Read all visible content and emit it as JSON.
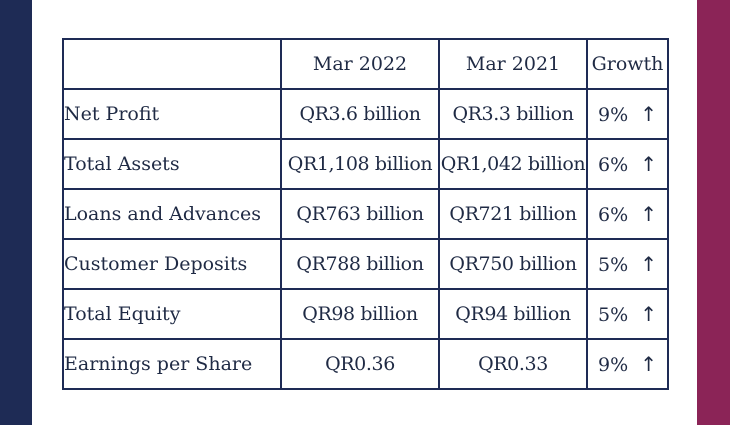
{
  "table": {
    "headers": [
      "",
      "Mar 2022",
      "Mar 2021",
      "Growth"
    ],
    "rows": [
      {
        "metric": "Net Profit",
        "mar2022": "QR3.6 billion",
        "mar2021": "QR3.3 billion",
        "growth": "9%",
        "arrow": "↑"
      },
      {
        "metric": "Total Assets",
        "mar2022": "QR1,108 billion",
        "mar2021": "QR1,042 billion",
        "growth": "6%",
        "arrow": "↑"
      },
      {
        "metric": "Loans and Advances",
        "mar2022": "QR763 billion",
        "mar2021": "QR721 billion",
        "growth": "6%",
        "arrow": "↑"
      },
      {
        "metric": "Customer Deposits",
        "mar2022": "QR788 billion",
        "mar2021": "QR750 billion",
        "growth": "5%",
        "arrow": "↑"
      },
      {
        "metric": "Total Equity",
        "mar2022": "QR98 billion",
        "mar2021": "QR94 billion",
        "growth": "5%",
        "arrow": "↑"
      },
      {
        "metric": "Earnings per Share",
        "mar2022": "QR0.36",
        "mar2021": "QR0.33",
        "growth": "9%",
        "arrow": "↑"
      }
    ]
  },
  "colors": {
    "left_bar": "#1e2b55",
    "right_bar": "#8b2457",
    "table_border": "#1e2b55",
    "text": "#1f2a44"
  },
  "icons": {
    "growth_indicator": "up-arrow-icon"
  }
}
